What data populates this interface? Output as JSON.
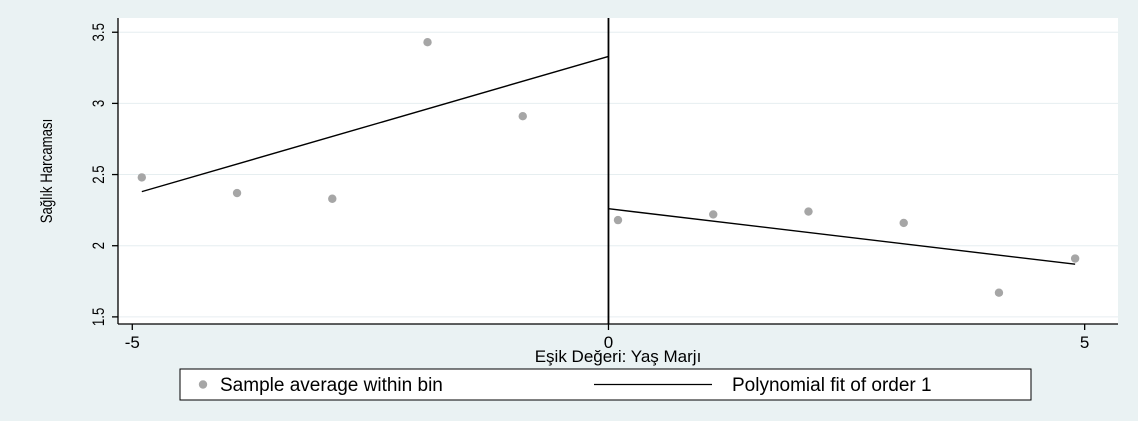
{
  "chart_data": {
    "type": "scatter",
    "title": "",
    "xlabel": "Eşik Değeri: Yaş Marjı",
    "ylabel": "Sağlık Harcaması",
    "xlim": [
      -5.15,
      5.35
    ],
    "ylim": [
      1.45,
      3.6
    ],
    "x_ticks": [
      {
        "value": -5,
        "label": "-5"
      },
      {
        "value": 0,
        "label": "0"
      },
      {
        "value": 5,
        "label": "5"
      }
    ],
    "y_ticks": [
      {
        "value": 1.5,
        "label": "1.5"
      },
      {
        "value": 2,
        "label": "2"
      },
      {
        "value": 2.5,
        "label": "2.5"
      },
      {
        "value": 3,
        "label": "3"
      },
      {
        "value": 3.5,
        "label": "3.5"
      }
    ],
    "grid": true,
    "cutoff": 0,
    "series": [
      {
        "name": "Sample average within bin",
        "kind": "points",
        "color": "#a6a6a6",
        "points": [
          {
            "x": -4.9,
            "y": 2.48
          },
          {
            "x": -3.9,
            "y": 2.37
          },
          {
            "x": -2.9,
            "y": 2.33
          },
          {
            "x": -1.9,
            "y": 3.43
          },
          {
            "x": -0.9,
            "y": 2.91
          },
          {
            "x": 0.1,
            "y": 2.18
          },
          {
            "x": 1.1,
            "y": 2.22
          },
          {
            "x": 2.1,
            "y": 2.24
          },
          {
            "x": 3.1,
            "y": 2.16
          },
          {
            "x": 4.1,
            "y": 1.67
          },
          {
            "x": 4.9,
            "y": 1.91
          }
        ]
      },
      {
        "name": "Polynomial fit of order 1",
        "kind": "lines",
        "color": "#000000",
        "segments": [
          [
            {
              "x": -4.9,
              "y": 2.38
            },
            {
              "x": 0,
              "y": 3.33
            }
          ],
          [
            {
              "x": 0,
              "y": 2.26
            },
            {
              "x": 4.9,
              "y": 1.87
            }
          ]
        ]
      }
    ],
    "legend": {
      "position": "bottom",
      "items": [
        "Sample average within bin",
        "Polynomial fit of order 1"
      ]
    },
    "colors": {
      "background": "#eaf2f3",
      "plot_area": "#ffffff",
      "grid": "#e6eef0",
      "points": "#a6a6a6",
      "lines": "#000000"
    }
  }
}
